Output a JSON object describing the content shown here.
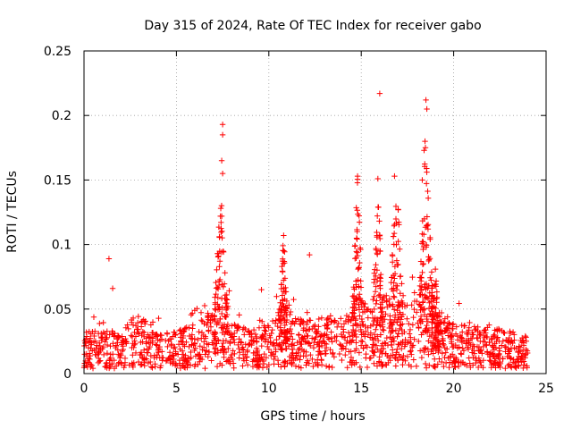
{
  "chart_data": {
    "type": "scatter",
    "title": "Day 315 of 2024, Rate Of TEC Index for receiver gabo",
    "xlabel": "GPS time / hours",
    "ylabel": "ROTI / TECUs",
    "xlim": [
      0,
      25
    ],
    "ylim": [
      0,
      0.25
    ],
    "x_ticks": [
      0,
      5,
      10,
      15,
      20,
      25
    ],
    "x_tick_labels": [
      "0",
      "5",
      "10",
      "15",
      "20",
      "25"
    ],
    "y_ticks": [
      0,
      0.05,
      0.1,
      0.15,
      0.2,
      0.25
    ],
    "y_tick_labels": [
      "0",
      "0.05",
      "0.1",
      "0.15",
      "0.2",
      "0.25"
    ],
    "grid": true,
    "marker": "+",
    "series_color": "#ff0000",
    "series": [
      {
        "name": "ROTI",
        "x_range": [
          0,
          24
        ],
        "baseline_profile": [
          [
            0.0,
            0.018
          ],
          [
            2.0,
            0.018
          ],
          [
            2.8,
            0.026
          ],
          [
            4.0,
            0.02
          ],
          [
            5.0,
            0.018
          ],
          [
            6.0,
            0.022
          ],
          [
            7.0,
            0.03
          ],
          [
            7.5,
            0.045
          ],
          [
            8.0,
            0.024
          ],
          [
            9.0,
            0.018
          ],
          [
            10.0,
            0.022
          ],
          [
            10.8,
            0.032
          ],
          [
            11.5,
            0.024
          ],
          [
            12.5,
            0.024
          ],
          [
            14.0,
            0.026
          ],
          [
            14.8,
            0.04
          ],
          [
            15.5,
            0.028
          ],
          [
            16.0,
            0.036
          ],
          [
            17.0,
            0.034
          ],
          [
            18.5,
            0.04
          ],
          [
            19.2,
            0.028
          ],
          [
            20.0,
            0.022
          ],
          [
            22.0,
            0.02
          ],
          [
            24.0,
            0.016
          ]
        ],
        "notable_points": [
          {
            "x": 1.35,
            "y": 0.089
          },
          {
            "x": 1.55,
            "y": 0.066
          },
          {
            "x": 7.5,
            "y": 0.193
          },
          {
            "x": 7.5,
            "y": 0.185
          },
          {
            "x": 7.45,
            "y": 0.165
          },
          {
            "x": 7.5,
            "y": 0.155
          },
          {
            "x": 7.4,
            "y": 0.128
          },
          {
            "x": 9.6,
            "y": 0.065
          },
          {
            "x": 10.8,
            "y": 0.107
          },
          {
            "x": 12.2,
            "y": 0.092
          },
          {
            "x": 14.8,
            "y": 0.153
          },
          {
            "x": 15.9,
            "y": 0.151
          },
          {
            "x": 16.0,
            "y": 0.217
          },
          {
            "x": 16.8,
            "y": 0.153
          },
          {
            "x": 18.5,
            "y": 0.212
          },
          {
            "x": 18.55,
            "y": 0.205
          },
          {
            "x": 18.45,
            "y": 0.18
          },
          {
            "x": 18.4,
            "y": 0.173
          },
          {
            "x": 18.3,
            "y": 0.15
          }
        ],
        "peak_clusters": [
          {
            "center": 7.4,
            "width": 0.5,
            "max": 0.13
          },
          {
            "center": 10.8,
            "width": 0.3,
            "max": 0.1
          },
          {
            "center": 14.8,
            "width": 0.4,
            "max": 0.14
          },
          {
            "center": 15.9,
            "width": 0.4,
            "max": 0.13
          },
          {
            "center": 16.9,
            "width": 0.5,
            "max": 0.14
          },
          {
            "center": 18.5,
            "width": 0.5,
            "max": 0.17
          },
          {
            "center": 19.0,
            "width": 0.3,
            "max": 0.07
          }
        ]
      }
    ]
  }
}
